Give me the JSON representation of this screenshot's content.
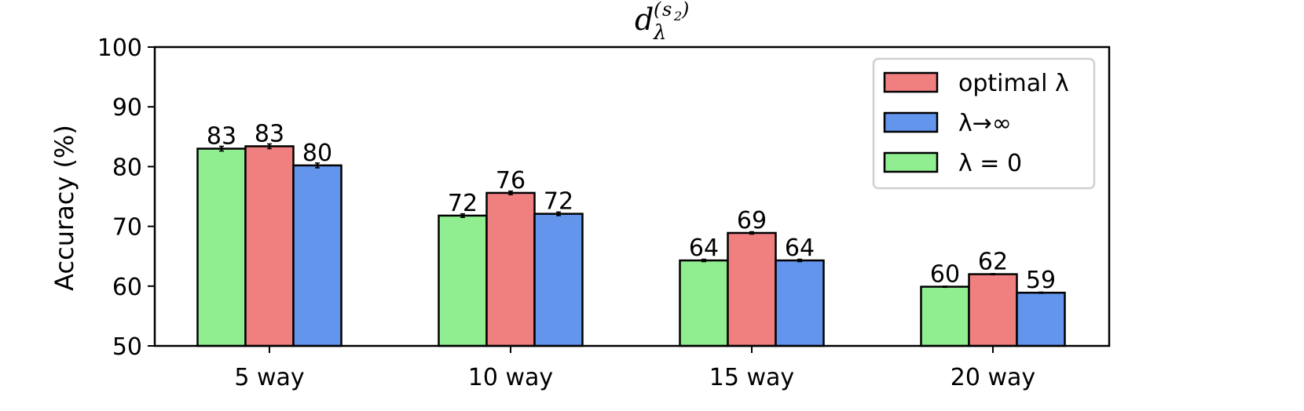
{
  "chart_data": {
    "type": "bar",
    "title": {
      "base": "d",
      "subscript": "λ",
      "superscript_open": "(",
      "superscript_var": "s",
      "superscript_sub": "2",
      "superscript_close": ")"
    },
    "xlabel": "",
    "ylabel": "Accuracy (%)",
    "ylim": [
      50,
      100
    ],
    "yticks": [
      50,
      60,
      70,
      80,
      90,
      100
    ],
    "categories": [
      "5 way",
      "10 way",
      "15 way",
      "20 way"
    ],
    "series": [
      {
        "name": "λ = 0",
        "color": "#90ee90",
        "values": [
          83.0,
          71.8,
          64.3,
          59.9
        ],
        "labels": [
          "83",
          "72",
          "64",
          "60"
        ],
        "errors": [
          0.4,
          0.3,
          0.2,
          0.1
        ]
      },
      {
        "name": "optimal λ",
        "color": "#f08080",
        "values": [
          83.4,
          75.6,
          68.9,
          62.0
        ],
        "labels": [
          "83",
          "76",
          "69",
          "62"
        ],
        "errors": [
          0.4,
          0.3,
          0.2,
          0.1
        ]
      },
      {
        "name": "λ→∞",
        "color": "#6495ed",
        "values": [
          80.2,
          72.1,
          64.3,
          58.9
        ],
        "labels": [
          "80",
          "72",
          "64",
          "59"
        ],
        "errors": [
          0.4,
          0.3,
          0.2,
          0.1
        ]
      }
    ],
    "legend": {
      "position": "top-right",
      "order": [
        1,
        2,
        0
      ],
      "entries": [
        "optimal λ",
        "λ→∞",
        "λ = 0"
      ]
    },
    "grid": false
  }
}
